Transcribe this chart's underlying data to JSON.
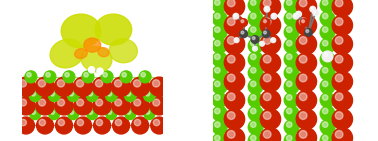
{
  "background_color": "#ffffff",
  "left_bg": "#ffffff",
  "right_bg": "#ffffff",
  "left_panel": {
    "red_sphere_color": "#cc2200",
    "green_sphere_color": "#55cc00",
    "isosurface_color": "#ccdd00",
    "isosurface_alpha": 0.85,
    "orange_isosurface_color": "#ff8800",
    "orange_isosurface_alpha": 0.7,
    "lattice_line_color": "#cc2200",
    "lattice_line_alpha": 0.9
  },
  "right_panel": {
    "red_sphere_color": "#cc2200",
    "green_sphere_color": "#55cc00",
    "white_sphere_color": "#f0f0f0",
    "dark_sphere_color": "#444444",
    "molecule_red": "#cc2200"
  },
  "figsize": [
    3.78,
    1.41
  ],
  "dpi": 100
}
